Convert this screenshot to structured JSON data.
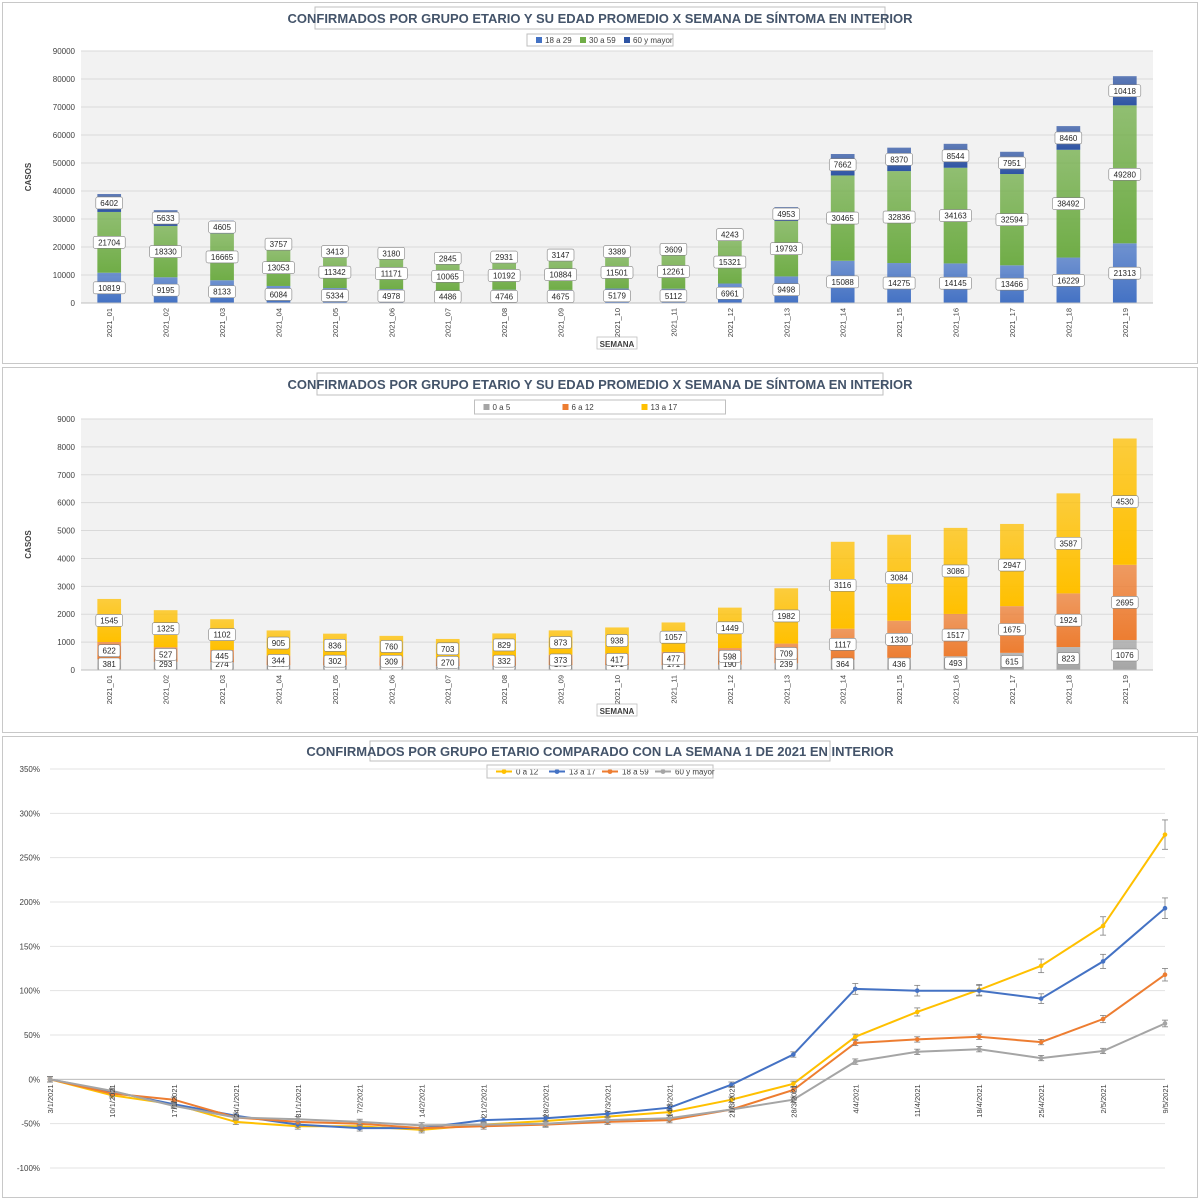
{
  "chart_data": [
    {
      "type": "bar",
      "stacked": true,
      "title": "CONFIRMADOS POR GRUPO ETARIO Y SU EDAD PROMEDIO X SEMANA DE SÍNTOMA EN INTERIOR",
      "xlabel": "SEMANA",
      "ylabel": "CASOS",
      "ylim": [
        0,
        90000
      ],
      "yticks": [
        "0",
        "10000",
        "20000",
        "30000",
        "40000",
        "50000",
        "60000",
        "70000",
        "80000",
        "90000"
      ],
      "legend_position": "top",
      "grid": true,
      "categories": [
        "2021_01",
        "2021_02",
        "2021_03",
        "2021_04",
        "2021_05",
        "2021_06",
        "2021_07",
        "2021_08",
        "2021_09",
        "2021_10",
        "2021_11",
        "2021_12",
        "2021_13",
        "2021_14",
        "2021_15",
        "2021_16",
        "2021_17",
        "2021_18",
        "2021_19"
      ],
      "series": [
        {
          "name": "18 a 29",
          "color": "#4472c4",
          "values": [
            10819,
            9195,
            8133,
            6084,
            5334,
            4978,
            4486,
            4746,
            4675,
            5179,
            5112,
            6961,
            9498,
            15088,
            14275,
            14145,
            13466,
            16229,
            21313
          ]
        },
        {
          "name": "30 a 59",
          "color": "#70ad47",
          "values": [
            21704,
            18330,
            16665,
            13053,
            11342,
            11171,
            10065,
            10192,
            10884,
            11501,
            12261,
            15321,
            19793,
            30465,
            32836,
            34163,
            32594,
            38492,
            49280
          ]
        },
        {
          "name": "60 y mayor",
          "color": "#2f55a4",
          "values": [
            6402,
            5633,
            4605,
            3757,
            3413,
            3180,
            2845,
            2931,
            3147,
            3389,
            3609,
            4243,
            4953,
            7662,
            8370,
            8544,
            7951,
            8460,
            10418
          ]
        }
      ]
    },
    {
      "type": "bar",
      "stacked": true,
      "title": "CONFIRMADOS POR GRUPO ETARIO Y SU EDAD PROMEDIO X SEMANA DE SÍNTOMA EN INTERIOR",
      "xlabel": "SEMANA",
      "ylabel": "CASOS",
      "ylim": [
        0,
        9000
      ],
      "yticks": [
        "0",
        "1000",
        "2000",
        "3000",
        "4000",
        "5000",
        "6000",
        "7000",
        "8000",
        "9000"
      ],
      "legend_position": "top",
      "grid": true,
      "categories": [
        "2021_01",
        "2021_02",
        "2021_03",
        "2021_04",
        "2021_05",
        "2021_06",
        "2021_07",
        "2021_08",
        "2021_09",
        "2021_10",
        "2021_11",
        "2021_12",
        "2021_13",
        "2021_14",
        "2021_15",
        "2021_16",
        "2021_17",
        "2021_18",
        "2021_19"
      ],
      "series": [
        {
          "name": "0 a 5",
          "color": "#a5a5a5",
          "values": [
            381,
            293,
            274,
            170,
            165,
            155,
            140,
            151,
            175,
            171,
            171,
            190,
            239,
            364,
            436,
            493,
            615,
            823,
            1076
          ]
        },
        {
          "name": "6 a 12",
          "color": "#ed7d31",
          "values": [
            622,
            527,
            445,
            344,
            302,
            309,
            270,
            332,
            373,
            417,
            477,
            598,
            709,
            1117,
            1330,
            1517,
            1675,
            1924,
            2695
          ]
        },
        {
          "name": "13 a 17",
          "color": "#ffc000",
          "values": [
            1545,
            1325,
            1102,
            905,
            836,
            760,
            703,
            829,
            873,
            938,
            1057,
            1449,
            1982,
            3116,
            3084,
            3086,
            2947,
            3587,
            4530
          ]
        }
      ]
    },
    {
      "type": "line",
      "title": "CONFIRMADOS POR GRUPO ETARIO COMPARADO CON LA SEMANA 1 DE 2021 EN INTERIOR",
      "ylim": [
        -100,
        350
      ],
      "yticks": [
        "-100%",
        "-50%",
        "0%",
        "50%",
        "100%",
        "150%",
        "200%",
        "250%",
        "300%",
        "350%"
      ],
      "legend_position": "top",
      "grid": true,
      "x": [
        "3/1/2021",
        "10/1/2021",
        "17/1/2021",
        "24/1/2021",
        "31/1/2021",
        "7/2/2021",
        "14/2/2021",
        "21/2/2021",
        "28/2/2021",
        "7/3/2021",
        "14/3/2021",
        "21/3/2021",
        "28/3/2021",
        "4/4/2021",
        "11/4/2021",
        "18/4/2021",
        "25/4/2021",
        "2/5/2021",
        "9/5/2021"
      ],
      "series": [
        {
          "name": "0 a 12",
          "color": "#ffc000",
          "values": [
            0,
            -18,
            -28,
            -48,
            -53,
            -53,
            -57,
            -51,
            -47,
            -42,
            -37,
            -23,
            -5,
            48,
            76,
            101,
            128,
            173,
            276
          ]
        },
        {
          "name": "13 a 17",
          "color": "#4472c4",
          "values": [
            0,
            -14,
            -28,
            -41,
            -51,
            -55,
            -55,
            -46,
            -44,
            -39,
            -32,
            -6,
            28,
            102,
            100,
            100,
            91,
            133,
            193
          ]
        },
        {
          "name": "18 a 59",
          "color": "#ed7d31",
          "values": [
            0,
            -16,
            -23,
            -43,
            -48,
            -50,
            -55,
            -53,
            -51,
            -48,
            -46,
            -34,
            -12,
            41,
            45,
            48,
            42,
            68,
            118
          ]
        },
        {
          "name": "60 y mayor",
          "color": "#a5a5a5",
          "values": [
            0,
            -13,
            -30,
            -43,
            -45,
            -48,
            -52,
            -51,
            -50,
            -46,
            -44,
            -34,
            -23,
            20,
            31,
            34,
            24,
            32,
            63
          ]
        }
      ]
    }
  ]
}
